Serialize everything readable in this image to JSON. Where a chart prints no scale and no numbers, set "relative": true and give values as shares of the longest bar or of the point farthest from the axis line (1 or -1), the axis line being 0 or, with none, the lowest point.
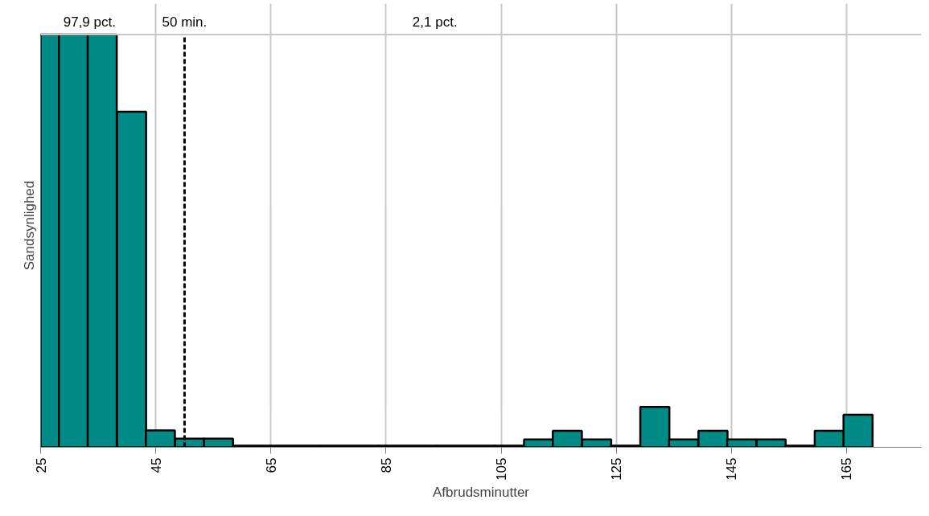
{
  "chart_data": {
    "type": "bar",
    "relative": true,
    "xlabel": "Afbrudsminutter",
    "ylabel": "Sandsynlighed",
    "x": [
      26.6,
      30.7,
      35.7,
      40.8,
      45.8,
      50.9,
      55.9,
      61.0,
      66.0,
      71.1,
      76.1,
      81.2,
      86.2,
      91.3,
      96.3,
      101.4,
      106.4,
      111.5,
      116.5,
      121.6,
      126.6,
      131.7,
      136.7,
      141.8,
      146.8,
      151.9,
      156.9,
      162.0,
      167.0
    ],
    "values": [
      1,
      1,
      1,
      0.813,
      0.041,
      0.021,
      0.021,
      0.004,
      0.004,
      0.004,
      0.004,
      0.004,
      0.004,
      0.004,
      0.004,
      0.004,
      0.004,
      0.019,
      0.04,
      0.019,
      0.004,
      0.098,
      0.019,
      0.04,
      0.019,
      0.019,
      0.004,
      0.04,
      0.079
    ],
    "color": "#008b87",
    "xlim": [
      25,
      178
    ],
    "xticks": [
      25,
      45,
      65,
      85,
      105,
      125,
      145,
      165
    ],
    "grid": "x",
    "ref_lines": [
      {
        "axis": "x",
        "value": 50,
        "label": "50 min.",
        "color": "#000000",
        "line_style": "dashed"
      }
    ],
    "annotations": [
      "97,9 pct.",
      "2,1 pct."
    ]
  }
}
